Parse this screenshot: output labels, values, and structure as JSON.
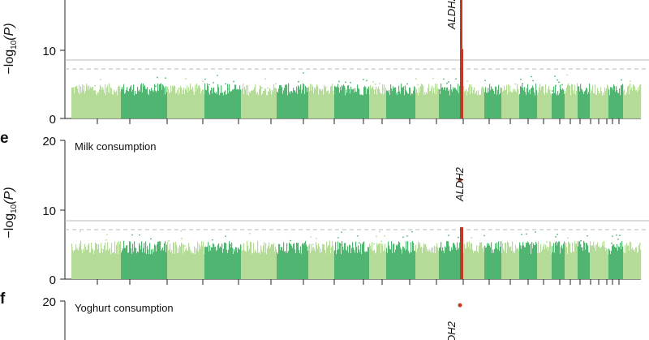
{
  "colors": {
    "light_green": "#b5dc97",
    "dark_green": "#4fb571",
    "highlight": "#c23a27",
    "threshold_solid": "#b8b8b8",
    "threshold_dashed": "#b8b8b8",
    "axis": "#222222"
  },
  "chart_data": [
    {
      "type": "scatter",
      "panel_label": "",
      "title": "",
      "ylabel_main": "−log",
      "ylabel_sub": "10",
      "ylabel_end": "(P)",
      "ylim": [
        0,
        20
      ],
      "y_ticks": [
        "0",
        "10"
      ],
      "genome_wide_threshold": 8.3,
      "suggestive_threshold": 7.3,
      "lead_gene": "ALDH2",
      "lead_max": 17.5,
      "peak_column_max": 10.2,
      "background_level": 4.5,
      "truncated_top": true
    },
    {
      "type": "scatter",
      "panel_label": "e",
      "title": "Milk consumption",
      "ylabel_main": "−log",
      "ylabel_sub": "10",
      "ylabel_end": "(P)",
      "ylim": [
        0,
        20
      ],
      "y_ticks": [
        "0",
        "10",
        "20"
      ],
      "genome_wide_threshold": 8.3,
      "suggestive_threshold": 7.3,
      "lead_gene": "ALDH2",
      "lead_max": 14.3,
      "peak_column_max": 7.5,
      "background_level": 4.8,
      "truncated_top": false
    },
    {
      "type": "scatter",
      "panel_label": "f",
      "title": "Yoghurt consumption",
      "ylabel_main": "−log",
      "ylabel_sub": "10",
      "ylabel_end": "(P)",
      "ylim": [
        0,
        20
      ],
      "y_ticks": [
        "20"
      ],
      "lead_gene": "ALDH2",
      "lead_max": 19.4,
      "truncated_bottom": true
    }
  ]
}
